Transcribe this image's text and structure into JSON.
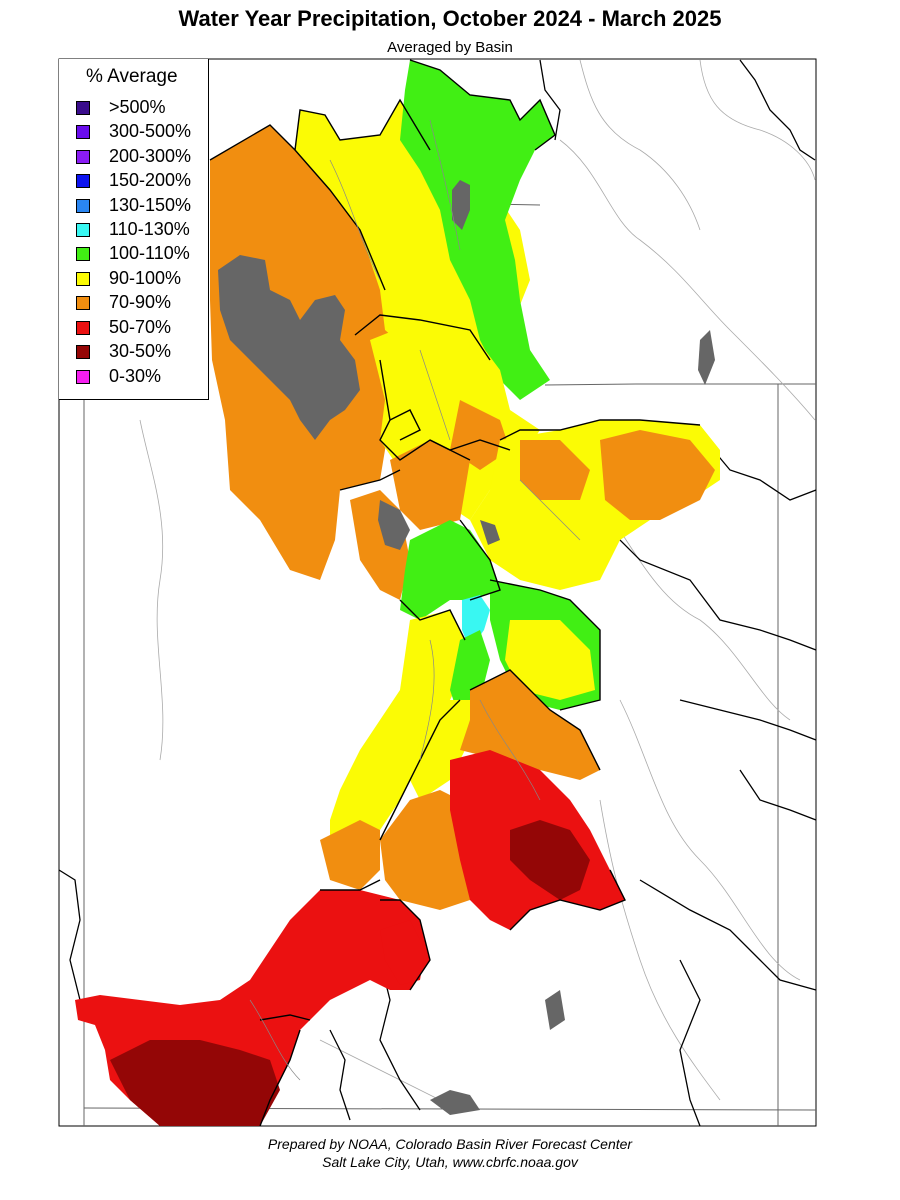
{
  "title": "Water Year Precipitation, October 2024 - March 2025",
  "subtitle": "Averaged by Basin",
  "legend": {
    "title": "% Average",
    "items": [
      {
        "label": ">500%",
        "color": "#3a0d8c"
      },
      {
        "label": "300-500%",
        "color": "#6a0ded"
      },
      {
        "label": "200-300%",
        "color": "#8a1cf4"
      },
      {
        "label": "150-200%",
        "color": "#0d14f0"
      },
      {
        "label": "130-150%",
        "color": "#2a86f2"
      },
      {
        "label": "110-130%",
        "color": "#39f7f2"
      },
      {
        "label": "100-110%",
        "color": "#41ef14"
      },
      {
        "label": "90-100%",
        "color": "#fbfb05"
      },
      {
        "label": "70-90%",
        "color": "#f18e10"
      },
      {
        "label": "50-70%",
        "color": "#eb1111"
      },
      {
        "label": "30-50%",
        "color": "#940606"
      },
      {
        "label": "0-30%",
        "color": "#f61ef0"
      }
    ]
  },
  "colors": {
    "no_data": "#666666",
    "boundary": "#000000",
    "river": "#9a9a9a",
    "state_line": "#555555"
  },
  "footer": {
    "line1": "Prepared by NOAA, Colorado Basin River Forecast Center",
    "line2": "Salt Lake City, Utah, www.cbrfc.noaa.gov"
  }
}
